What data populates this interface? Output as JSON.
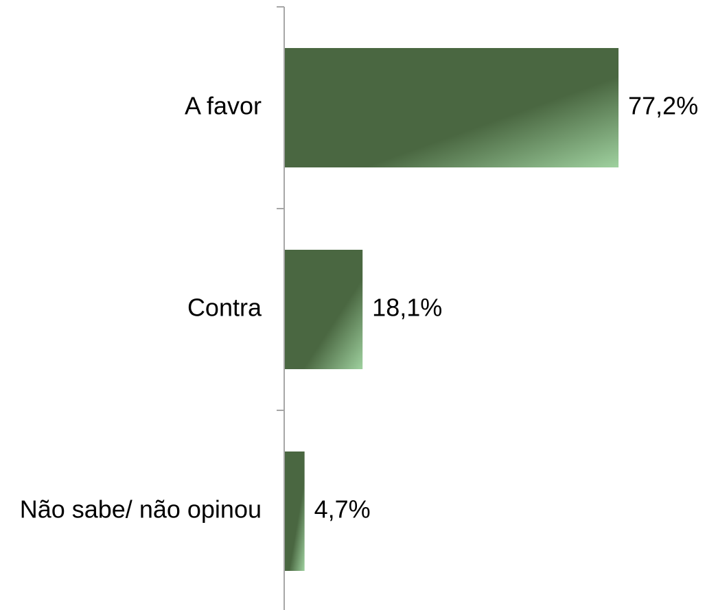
{
  "chart_data": {
    "type": "bar",
    "orientation": "horizontal",
    "categories": [
      "A favor",
      "Contra",
      "Não sabe/ não opinou"
    ],
    "values": [
      77.2,
      18.1,
      4.7
    ],
    "value_labels": [
      "77,2%",
      "18,1%",
      "4,7%"
    ],
    "unit": "%",
    "title": "",
    "xlabel": "",
    "ylabel": "",
    "xlim": [
      0,
      100
    ],
    "grid": false,
    "legend": "none",
    "colors": {
      "bar_dark": "#4a6741",
      "bar_light": "#9fd19f",
      "axis": "#a6a6a6",
      "text": "#000000"
    }
  }
}
